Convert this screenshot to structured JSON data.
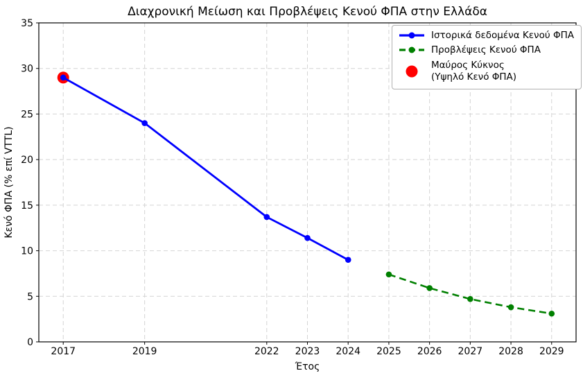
{
  "figure": {
    "title": "Διαχρονική Μείωση και Προβλέψεις Κενού ΦΠΑ στην Ελλάδα",
    "xlabel": "Έτος",
    "ylabel": "Κενό ΦΠΑ (% επί VTTL)"
  },
  "legend": {
    "items": [
      {
        "label": "Ιστορικά δεδομένα Κενού ΦΠΑ"
      },
      {
        "label": "Προβλέψεις Κενού ΦΠΑ"
      },
      {
        "label": "Μαύρος Κύκνος",
        "label2": "(Υψηλό Κενό ΦΠΑ)"
      }
    ]
  },
  "colors": {
    "historical": "#0000ff",
    "forecast": "#008000",
    "black_swan": "#ff0000",
    "grid": "#d4d4d4",
    "frame": "#000000",
    "background": "#ffffff"
  },
  "chart_data": {
    "type": "line",
    "title": "Διαχρονική Μείωση και Προβλέψεις Κενού ΦΠΑ στην Ελλάδα",
    "xlabel": "Έτος",
    "ylabel": "Κενό ΦΠΑ (% επί VTTL)",
    "xlim": [
      2016.4,
      2029.6
    ],
    "ylim": [
      0,
      35
    ],
    "x_ticks": [
      2017,
      2019,
      2022,
      2023,
      2024,
      2025,
      2026,
      2027,
      2028,
      2029
    ],
    "y_ticks": [
      0,
      5,
      10,
      15,
      20,
      25,
      30,
      35
    ],
    "grid": true,
    "grid_style": "dashed",
    "grid_color": "#d4d4d4",
    "legend_position": "upper right",
    "series": [
      {
        "name": "Ιστορικά δεδομένα Κενού ΦΠΑ",
        "color": "#0000ff",
        "style": "solid",
        "marker": "circle",
        "x": [
          2017,
          2019,
          2022,
          2023,
          2024
        ],
        "y": [
          29.0,
          24.0,
          13.7,
          11.4,
          9.0
        ]
      },
      {
        "name": "Προβλέψεις Κενού ΦΠΑ",
        "color": "#008000",
        "style": "dashed",
        "marker": "circle",
        "x": [
          2025,
          2026,
          2027,
          2028,
          2029
        ],
        "y": [
          7.4,
          5.9,
          4.7,
          3.8,
          3.1
        ]
      }
    ],
    "annotations": [
      {
        "name": "Μαύρος Κύκνος (Υψηλό Κενό ΦΠΑ)",
        "x": 2017,
        "y": 29.0,
        "color": "#ff0000",
        "marker": "circle",
        "size": 17
      }
    ]
  }
}
